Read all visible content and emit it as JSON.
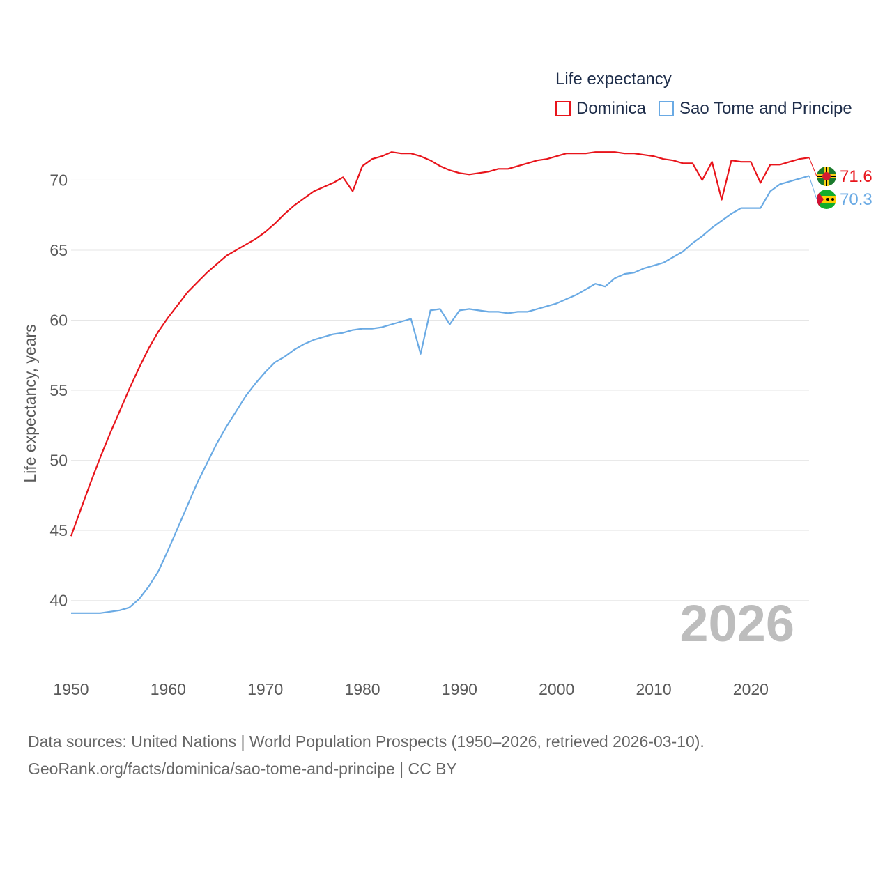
{
  "legend": {
    "title": "Life expectancy",
    "items": [
      {
        "label": "Dominica",
        "color": "#e8141b"
      },
      {
        "label": "Sao Tome and Principe",
        "color": "#6aaae4"
      }
    ]
  },
  "source": {
    "line1": "Data sources: United Nations | World Population Prospects (1950–2026, retrieved 2026-03-10).",
    "line2": "GeoRank.org/facts/dominica/sao-tome-and-principe | CC BY"
  },
  "chart_data": {
    "type": "line",
    "title": "Life expectancy",
    "xlabel": "",
    "ylabel": "Life expectancy, years",
    "xlim": [
      1950,
      2026
    ],
    "ylim": [
      37.5,
      73.5
    ],
    "x_ticks": [
      1950,
      1960,
      1970,
      1980,
      1990,
      2000,
      2010,
      2020
    ],
    "y_ticks": [
      40,
      45,
      50,
      55,
      60,
      65,
      70
    ],
    "grid": true,
    "year_label": "2026",
    "x": [
      1950,
      1951,
      1952,
      1953,
      1954,
      1955,
      1956,
      1957,
      1958,
      1959,
      1960,
      1961,
      1962,
      1963,
      1964,
      1965,
      1966,
      1967,
      1968,
      1969,
      1970,
      1971,
      1972,
      1973,
      1974,
      1975,
      1976,
      1977,
      1978,
      1979,
      1980,
      1981,
      1982,
      1983,
      1984,
      1985,
      1986,
      1987,
      1988,
      1989,
      1990,
      1991,
      1992,
      1993,
      1994,
      1995,
      1996,
      1997,
      1998,
      1999,
      2000,
      2001,
      2002,
      2003,
      2004,
      2005,
      2006,
      2007,
      2008,
      2009,
      2010,
      2011,
      2012,
      2013,
      2014,
      2015,
      2016,
      2017,
      2018,
      2019,
      2020,
      2021,
      2022,
      2023,
      2024,
      2025,
      2026
    ],
    "series": [
      {
        "name": "Dominica",
        "color": "#e8141b",
        "end_label": "71.6",
        "values": [
          44.6,
          46.5,
          48.4,
          50.2,
          51.9,
          53.5,
          55.1,
          56.6,
          58.0,
          59.2,
          60.2,
          61.1,
          62.0,
          62.7,
          63.4,
          64.0,
          64.6,
          65.0,
          65.4,
          65.8,
          66.3,
          66.9,
          67.6,
          68.2,
          68.7,
          69.2,
          69.5,
          69.8,
          70.2,
          69.2,
          71.0,
          71.5,
          71.7,
          72.0,
          71.9,
          71.9,
          71.7,
          71.4,
          71.0,
          70.7,
          70.5,
          70.4,
          70.5,
          70.6,
          70.8,
          70.8,
          71.0,
          71.2,
          71.4,
          71.5,
          71.7,
          71.9,
          71.9,
          71.9,
          72.0,
          72.0,
          72.0,
          71.9,
          71.9,
          71.8,
          71.7,
          71.5,
          71.4,
          71.2,
          71.2,
          70.0,
          71.3,
          68.6,
          71.4,
          71.3,
          71.3,
          69.8,
          71.1,
          71.1,
          71.3,
          71.5,
          71.6
        ]
      },
      {
        "name": "Sao Tome and Principe",
        "color": "#6aaae4",
        "end_label": "70.3",
        "values": [
          39.1,
          39.1,
          39.1,
          39.1,
          39.2,
          39.3,
          39.5,
          40.1,
          41.0,
          42.1,
          43.6,
          45.2,
          46.8,
          48.4,
          49.8,
          51.2,
          52.4,
          53.5,
          54.6,
          55.5,
          56.3,
          57.0,
          57.4,
          57.9,
          58.3,
          58.6,
          58.8,
          59.0,
          59.1,
          59.3,
          59.4,
          59.4,
          59.5,
          59.7,
          59.9,
          60.1,
          57.6,
          60.7,
          60.8,
          59.7,
          60.7,
          60.8,
          60.7,
          60.6,
          60.6,
          60.5,
          60.6,
          60.6,
          60.8,
          61.0,
          61.2,
          61.5,
          61.8,
          62.2,
          62.6,
          62.4,
          63.0,
          63.3,
          63.4,
          63.7,
          63.9,
          64.1,
          64.5,
          64.9,
          65.5,
          66.0,
          66.6,
          67.1,
          67.6,
          68.0,
          68.0,
          68.0,
          69.2,
          69.7,
          69.9,
          70.1,
          70.3
        ]
      }
    ]
  }
}
